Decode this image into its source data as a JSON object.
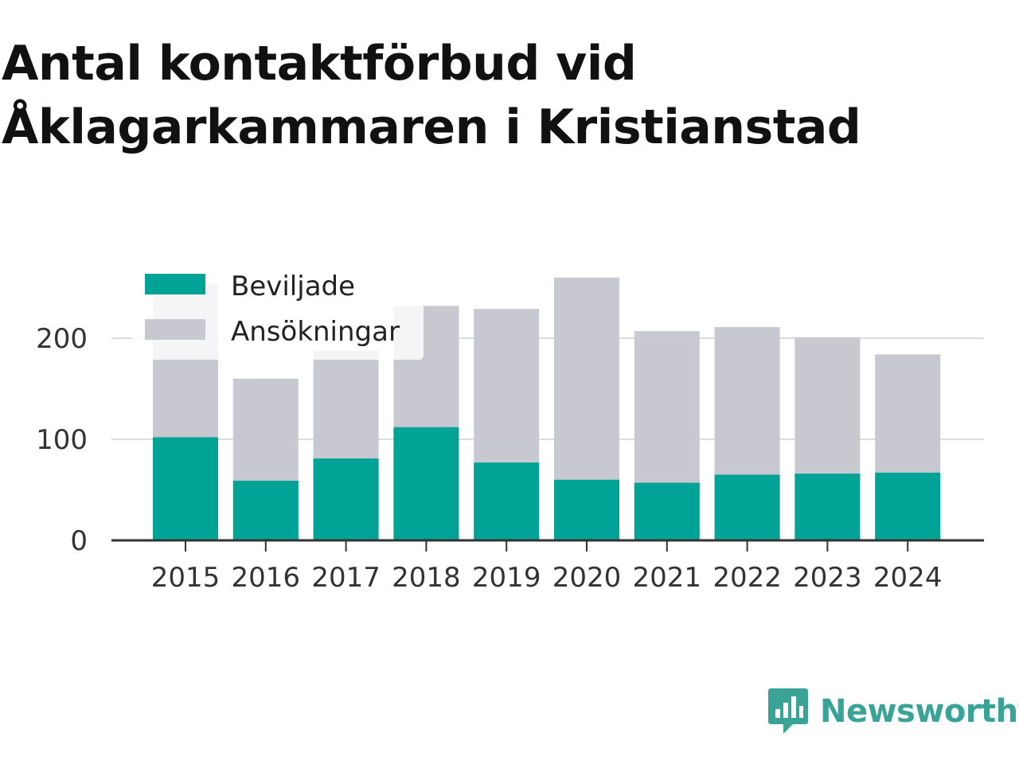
{
  "chart_data": {
    "type": "bar",
    "title": "Antal kontaktförbud vid Åklagarkammaren i Kristianstad",
    "categories": [
      "2015",
      "2016",
      "2017",
      "2018",
      "2019",
      "2020",
      "2021",
      "2022",
      "2023",
      "2024"
    ],
    "series": [
      {
        "name": "Beviljade",
        "color": "#00a396",
        "values": [
          102,
          59,
          81,
          112,
          77,
          60,
          57,
          65,
          66,
          67
        ]
      },
      {
        "name": "Ansökningar",
        "color": "#c8c8d0",
        "values": [
          253,
          160,
          188,
          232,
          229,
          260,
          207,
          211,
          201,
          184
        ]
      }
    ],
    "yticks": [
      0,
      100,
      200
    ],
    "ylim": [
      0,
      270
    ],
    "grid": true,
    "legend": "top-left",
    "overlay": true
  },
  "brand": {
    "name": "Newsworthy",
    "icon": "newsworthy-logo-icon",
    "color": "#3aa397"
  }
}
